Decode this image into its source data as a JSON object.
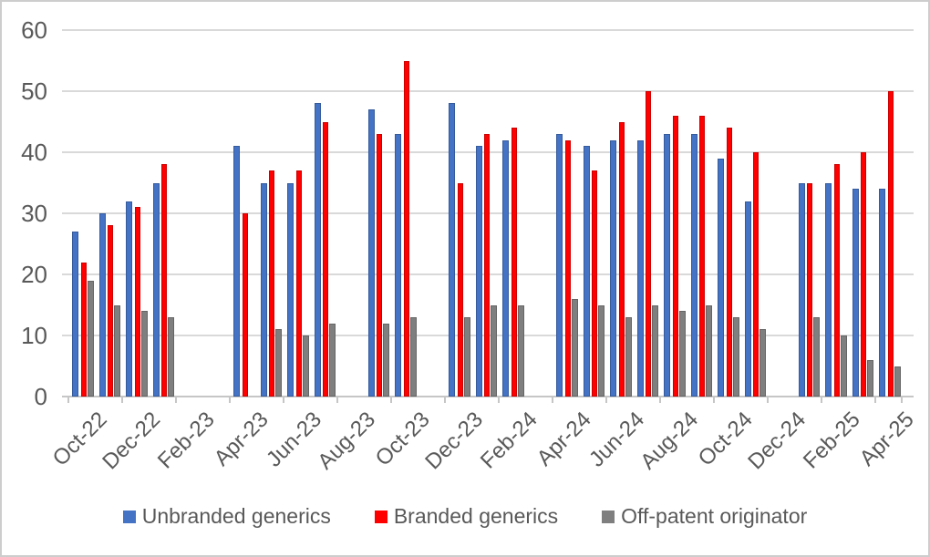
{
  "chart_data": {
    "type": "bar",
    "title": "",
    "categories": [
      "Oct-22",
      "Nov-22",
      "Dec-22",
      "Jan-23",
      "Feb-23",
      "Mar-23",
      "Apr-23",
      "May-23",
      "Jun-23",
      "Jul-23",
      "Aug-23",
      "Sep-23",
      "Oct-23",
      "Nov-23",
      "Dec-23",
      "Jan-24",
      "Feb-24",
      "Mar-24",
      "Apr-24",
      "May-24",
      "Jun-24",
      "Jul-24",
      "Aug-24",
      "Sep-24",
      "Oct-24",
      "Nov-24",
      "Dec-24",
      "Jan-25",
      "Feb-25",
      "Mar-25",
      "Apr-25"
    ],
    "x_tick_labels": [
      "Oct-22",
      "Dec-22",
      "Feb-23",
      "Apr-23",
      "Jun-23",
      "Aug-23",
      "Oct-23",
      "Dec-23",
      "Feb-24",
      "Apr-24",
      "Jun-24",
      "Aug-24",
      "Oct-24",
      "Dec-24",
      "Feb-25",
      "Apr-25"
    ],
    "y_ticks": [
      0,
      10,
      20,
      30,
      40,
      50,
      60
    ],
    "ylim": [
      0,
      60
    ],
    "grid": true,
    "legend_position": "bottom",
    "series": [
      {
        "name": "Unbranded generics",
        "color": "#4472C4",
        "values": [
          27,
          30,
          32,
          35,
          null,
          null,
          41,
          35,
          35,
          48,
          null,
          47,
          43,
          null,
          48,
          41,
          42,
          null,
          43,
          41,
          42,
          42,
          43,
          43,
          39,
          32,
          null,
          35,
          35,
          34,
          34
        ]
      },
      {
        "name": "Branded generics",
        "color": "#FF0000",
        "values": [
          22,
          28,
          31,
          38,
          null,
          null,
          30,
          37,
          37,
          45,
          null,
          43,
          55,
          null,
          35,
          43,
          44,
          null,
          42,
          37,
          45,
          50,
          46,
          46,
          44,
          40,
          null,
          35,
          38,
          40,
          50
        ]
      },
      {
        "name": "Off-patent originator",
        "color": "#7F7F7F",
        "values": [
          19,
          15,
          14,
          13,
          null,
          null,
          null,
          11,
          10,
          12,
          null,
          12,
          13,
          null,
          13,
          15,
          15,
          null,
          16,
          15,
          13,
          15,
          14,
          15,
          13,
          11,
          null,
          13,
          10,
          6,
          5
        ]
      }
    ]
  },
  "colors": {
    "gridline": "#D9D9D9",
    "axis_line": "#C6C6C6",
    "axis_text": "#595959",
    "legend_text": "#595959",
    "background": "#FFFFFF",
    "border": "#CDCDCD"
  }
}
